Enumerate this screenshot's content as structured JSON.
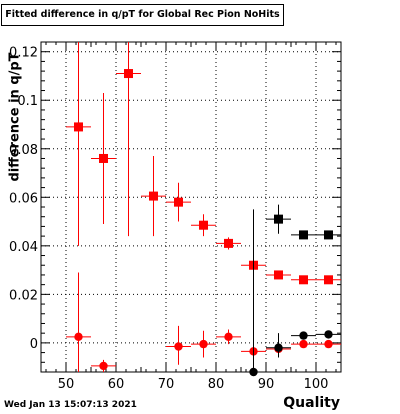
{
  "chart_data": {
    "type": "scatter",
    "title": "Fitted difference in q/pT for Global Rec Pion NoHits",
    "xlabel": "Quality",
    "ylabel": "difference in q/pT",
    "xlim": [
      45,
      105
    ],
    "ylim": [
      -0.012,
      0.124
    ],
    "grid": true,
    "x_tick_labels": [
      "50",
      "60",
      "70",
      "80",
      "90",
      "100"
    ],
    "y_tick_labels": [
      "0",
      "0.02",
      "0.04",
      "0.06",
      "0.08",
      "0.1",
      "0.12"
    ],
    "x_ticks": [
      50,
      60,
      70,
      80,
      90,
      100
    ],
    "y_ticks": [
      0,
      0.02,
      0.04,
      0.06,
      0.08,
      0.1,
      0.12
    ],
    "series": [
      {
        "marker": "square",
        "color": "#ff0000",
        "points": [
          {
            "x": 52.5,
            "y": 0.089,
            "ylo": 0.04,
            "yhi": 0.124
          },
          {
            "x": 57.5,
            "y": 0.076,
            "ylo": 0.049,
            "yhi": 0.103
          },
          {
            "x": 62.5,
            "y": 0.111,
            "ylo": 0.044,
            "yhi": 0.124
          },
          {
            "x": 67.5,
            "y": 0.0605,
            "ylo": 0.044,
            "yhi": 0.077
          },
          {
            "x": 72.5,
            "y": 0.058,
            "ylo": 0.05,
            "yhi": 0.066
          },
          {
            "x": 77.5,
            "y": 0.0485,
            "ylo": 0.044,
            "yhi": 0.053
          },
          {
            "x": 82.5,
            "y": 0.041,
            "ylo": 0.0385,
            "yhi": 0.0435
          },
          {
            "x": 87.5,
            "y": 0.032,
            "ylo": 0.029,
            "yhi": 0.035
          },
          {
            "x": 92.5,
            "y": 0.028,
            "ylo": 0.0265,
            "yhi": 0.0295
          },
          {
            "x": 97.5,
            "y": 0.026,
            "ylo": 0.0255,
            "yhi": 0.0265
          },
          {
            "x": 102.5,
            "y": 0.026,
            "ylo": 0.0255,
            "yhi": 0.0265
          }
        ]
      },
      {
        "marker": "circle",
        "color": "#ff0000",
        "points": [
          {
            "x": 52.5,
            "y": 0.0025,
            "ylo": -0.012,
            "yhi": 0.029
          },
          {
            "x": 57.5,
            "y": -0.0095,
            "ylo": -0.012,
            "yhi": -0.007
          },
          {
            "x": 72.5,
            "y": -0.0015,
            "ylo": -0.009,
            "yhi": 0.007
          },
          {
            "x": 77.5,
            "y": -0.0005,
            "ylo": -0.006,
            "yhi": 0.005
          },
          {
            "x": 82.5,
            "y": 0.0025,
            "ylo": -0.0005,
            "yhi": 0.0055
          },
          {
            "x": 87.5,
            "y": -0.0035,
            "ylo": -0.0055,
            "yhi": -0.0015
          },
          {
            "x": 92.5,
            "y": -0.0025,
            "ylo": -0.004,
            "yhi": -0.001
          },
          {
            "x": 97.5,
            "y": -0.0005,
            "ylo": -0.0012,
            "yhi": 0.0002
          },
          {
            "x": 102.5,
            "y": -0.0005,
            "ylo": -0.0012,
            "yhi": 0.0002
          }
        ]
      },
      {
        "marker": "square",
        "color": "#000000",
        "points": [
          {
            "x": 92.5,
            "y": 0.051,
            "ylo": 0.045,
            "yhi": 0.057
          },
          {
            "x": 97.5,
            "y": 0.0445,
            "ylo": 0.0435,
            "yhi": 0.0455
          },
          {
            "x": 102.5,
            "y": 0.0445,
            "ylo": 0.0435,
            "yhi": 0.0455
          }
        ]
      },
      {
        "marker": "circle",
        "color": "#000000",
        "points": [
          {
            "x": 87.5,
            "y": -0.012,
            "ylo": -0.012,
            "yhi": 0.055
          },
          {
            "x": 92.5,
            "y": -0.002,
            "ylo": -0.006,
            "yhi": 0.004
          },
          {
            "x": 97.5,
            "y": 0.003,
            "ylo": 0.0018,
            "yhi": 0.0042
          },
          {
            "x": 102.5,
            "y": 0.0035,
            "ylo": 0.0025,
            "yhi": 0.0045
          }
        ]
      }
    ]
  },
  "footer": {
    "datestamp": "Wed Jan 13 15:07:13 2021"
  }
}
